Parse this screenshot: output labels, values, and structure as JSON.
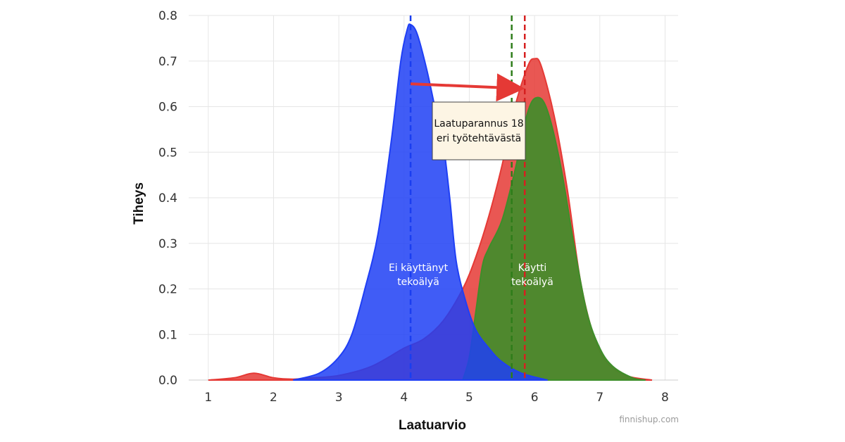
{
  "chart_data": {
    "type": "area",
    "xlabel": "Laatuarvio",
    "ylabel": "Tiheys",
    "xlim": [
      0.7,
      8.2
    ],
    "ylim": [
      0,
      0.8
    ],
    "x_ticks": [
      "1",
      "2",
      "3",
      "4",
      "5",
      "6",
      "7",
      "8"
    ],
    "y_ticks": [
      "0.0",
      "0.1",
      "0.2",
      "0.3",
      "0.4",
      "0.5",
      "0.6",
      "0.7",
      "0.8"
    ],
    "grid": true,
    "series": [
      {
        "color": "#e53935",
        "mean": 5.85,
        "points": [
          [
            1.0,
            0.0
          ],
          [
            1.4,
            0.005
          ],
          [
            1.7,
            0.015
          ],
          [
            2.0,
            0.005
          ],
          [
            2.3,
            0.002
          ],
          [
            2.6,
            0.005
          ],
          [
            3.0,
            0.01
          ],
          [
            3.5,
            0.03
          ],
          [
            4.0,
            0.07
          ],
          [
            4.3,
            0.09
          ],
          [
            4.6,
            0.13
          ],
          [
            4.9,
            0.2
          ],
          [
            5.1,
            0.27
          ],
          [
            5.3,
            0.36
          ],
          [
            5.5,
            0.47
          ],
          [
            5.7,
            0.6
          ],
          [
            5.9,
            0.69
          ],
          [
            6.0,
            0.705
          ],
          [
            6.1,
            0.69
          ],
          [
            6.3,
            0.58
          ],
          [
            6.5,
            0.42
          ],
          [
            6.7,
            0.22
          ],
          [
            6.9,
            0.1
          ],
          [
            7.1,
            0.04
          ],
          [
            7.4,
            0.01
          ],
          [
            7.8,
            0.0
          ]
        ]
      },
      {
        "color": "#3e8e2a",
        "mean": 5.65,
        "points": [
          [
            4.9,
            0.0
          ],
          [
            5.0,
            0.05
          ],
          [
            5.1,
            0.15
          ],
          [
            5.2,
            0.25
          ],
          [
            5.3,
            0.29
          ],
          [
            5.5,
            0.35
          ],
          [
            5.7,
            0.46
          ],
          [
            5.9,
            0.59
          ],
          [
            6.05,
            0.62
          ],
          [
            6.2,
            0.59
          ],
          [
            6.4,
            0.47
          ],
          [
            6.6,
            0.3
          ],
          [
            6.8,
            0.15
          ],
          [
            7.0,
            0.07
          ],
          [
            7.2,
            0.03
          ],
          [
            7.5,
            0.005
          ],
          [
            7.7,
            0.0
          ]
        ]
      },
      {
        "color": "#1f3ff5",
        "mean": 4.1,
        "points": [
          [
            2.3,
            0.0
          ],
          [
            2.7,
            0.015
          ],
          [
            3.0,
            0.05
          ],
          [
            3.2,
            0.1
          ],
          [
            3.4,
            0.2
          ],
          [
            3.6,
            0.32
          ],
          [
            3.8,
            0.52
          ],
          [
            3.95,
            0.7
          ],
          [
            4.05,
            0.77
          ],
          [
            4.1,
            0.78
          ],
          [
            4.2,
            0.76
          ],
          [
            4.35,
            0.68
          ],
          [
            4.5,
            0.58
          ],
          [
            4.6,
            0.52
          ],
          [
            4.7,
            0.4
          ],
          [
            4.8,
            0.26
          ],
          [
            4.95,
            0.17
          ],
          [
            5.1,
            0.11
          ],
          [
            5.3,
            0.07
          ],
          [
            5.5,
            0.04
          ],
          [
            5.8,
            0.015
          ],
          [
            6.2,
            0.0
          ]
        ]
      }
    ],
    "annotations": {
      "left_label": [
        "Ei käyttänyt",
        "tekoälyä"
      ],
      "right_label": [
        "Käytti",
        "tekoälyä"
      ],
      "callout": [
        "Laatuparannus 18",
        "eri työtehtävästä"
      ],
      "arrow": {
        "from": [
          4.1,
          0.65
        ],
        "to": [
          5.85,
          0.64
        ]
      }
    }
  },
  "watermark": "finnishup.com"
}
